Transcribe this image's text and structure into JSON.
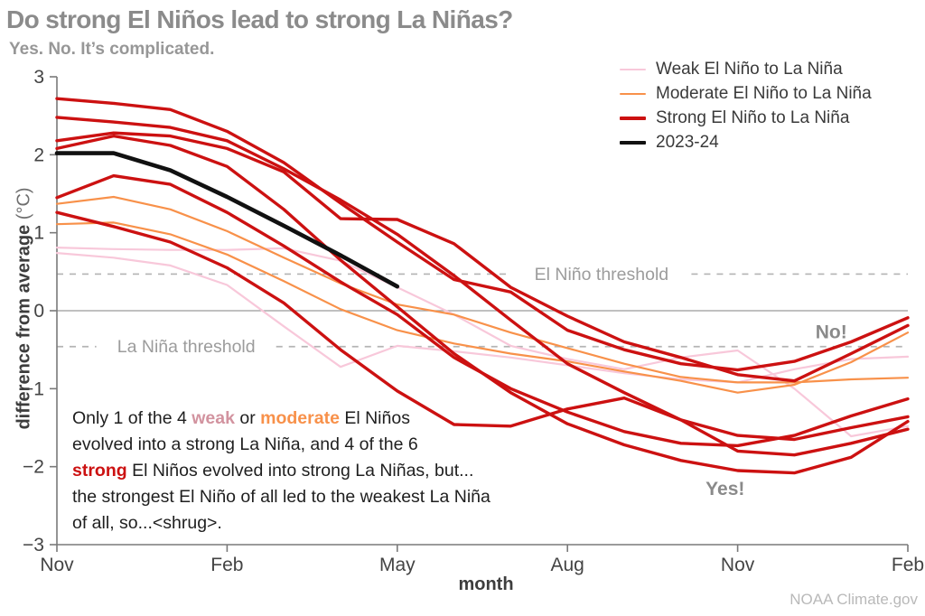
{
  "title": "Do strong El Niños lead to strong La Niñas?",
  "subtitle": "Yes. No. It’s complicated.",
  "credit": "NOAA Climate.gov",
  "colors": {
    "weak": "#f8c8da",
    "weak_text": "#d2939f",
    "moderate": "#f8914a",
    "strong": "#cc1111",
    "current": "#111111",
    "axis": "#7a7a7a",
    "zero_line": "#9a9a9a",
    "threshold_line": "#b4b4b4",
    "threshold_text": "#9c9c9c",
    "tick_text": "#444444",
    "gray_label": "#8a8a8a",
    "title_text": "#8b8b8b",
    "subtitle_text": "#979797",
    "body_text": "#1f1f1f",
    "credit_text": "#b9b9b9"
  },
  "legend": [
    {
      "label": "Weak El Niño to La Niña",
      "color_key": "weak",
      "thickness": 2.2
    },
    {
      "label": "Moderate El Niño to La Niña",
      "color_key": "moderate",
      "thickness": 2.2
    },
    {
      "label": "Strong El Niño to La Niña",
      "color_key": "strong",
      "thickness": 3.2
    },
    {
      "label": "2023-24",
      "color_key": "current",
      "thickness": 4.5
    }
  ],
  "axis_labels": {
    "y_main": "difference from average ",
    "y_units": "(°C)",
    "x": "month"
  },
  "annotation_lines": [
    [
      {
        "t": "Only 1 of the 4 "
      },
      {
        "t": "weak",
        "c": "weak_text",
        "b": true
      },
      {
        "t": " or "
      },
      {
        "t": "moderate",
        "c": "moderate",
        "b": true
      },
      {
        "t": " El Niños"
      }
    ],
    [
      {
        "t": "evolved into a strong La Niña, and 4 of the 6"
      }
    ],
    [
      {
        "t": "strong",
        "c": "strong",
        "b": true
      },
      {
        "t": " El Niños evolved into strong La Niñas, but..."
      }
    ],
    [
      {
        "t": "the strongest El Niño of all led to the weakest La Niña"
      }
    ],
    [
      {
        "t": "of all, so...<shrug>."
      }
    ]
  ],
  "chart_data": {
    "type": "line",
    "x": [
      "Nov",
      "Dec",
      "Jan",
      "Feb",
      "Mar",
      "Apr",
      "May",
      "Jun",
      "Jul",
      "Aug",
      "Sep",
      "Oct",
      "Nov",
      "Dec",
      "Jan",
      "Feb"
    ],
    "x_tick_indices": [
      0,
      3,
      6,
      9,
      12,
      15
    ],
    "x_tick_labels": [
      "Nov",
      "Feb",
      "May",
      "Aug",
      "Nov",
      "Feb"
    ],
    "xlabel": "month",
    "ylabel": "difference from average (°C)",
    "ylim": [
      -3,
      3
    ],
    "y_ticks": [
      3,
      2,
      1,
      0,
      -1,
      -2,
      -3
    ],
    "y_tick_labels": [
      "3",
      "2",
      "1",
      "0",
      "−1",
      "−2",
      "−3"
    ],
    "grid": "zero-line only",
    "legend_position": "top-right",
    "thresholds": [
      {
        "label": "El Niño threshold",
        "value": 0.47,
        "label_center_month": 9.6
      },
      {
        "label": "La Niña threshold",
        "value": -0.46,
        "label_center_month": 2.28
      }
    ],
    "point_labels": [
      {
        "text": "No!",
        "month": 13.65,
        "value": -0.27
      },
      {
        "text": "Yes!",
        "month": 11.78,
        "value": -2.28
      }
    ],
    "series": [
      {
        "name": "weak-el-nino-1",
        "group": "weak",
        "values": [
          0.74,
          0.68,
          0.58,
          0.33,
          -0.2,
          -0.72,
          -0.45,
          -0.52,
          -0.6,
          -0.7,
          -0.8,
          -0.88,
          -0.92,
          -0.75,
          -0.62,
          -0.59
        ]
      },
      {
        "name": "weak-el-nino-2",
        "group": "weak",
        "values": [
          0.81,
          0.79,
          0.78,
          0.78,
          0.8,
          0.64,
          0.3,
          -0.05,
          -0.45,
          -0.62,
          -0.75,
          -0.6,
          -0.51,
          -1.0,
          -1.61,
          -1.48
        ]
      },
      {
        "name": "moderate-el-nino-1",
        "group": "moderate",
        "values": [
          1.37,
          1.46,
          1.3,
          1.02,
          0.68,
          0.35,
          0.08,
          -0.05,
          -0.28,
          -0.48,
          -0.68,
          -0.85,
          -0.92,
          -0.92,
          -0.88,
          -0.86
        ]
      },
      {
        "name": "moderate-el-nino-2",
        "group": "moderate",
        "values": [
          1.11,
          1.13,
          0.98,
          0.72,
          0.38,
          0.02,
          -0.25,
          -0.42,
          -0.55,
          -0.65,
          -0.78,
          -0.9,
          -1.05,
          -0.95,
          -0.66,
          -0.28
        ]
      },
      {
        "name": "strong-el-nino-1",
        "group": "strong",
        "values": [
          2.72,
          2.66,
          2.58,
          2.3,
          1.9,
          1.38,
          0.88,
          0.4,
          0.24,
          -0.25,
          -0.5,
          -0.68,
          -0.76,
          -0.65,
          -0.4,
          -0.09
        ]
      },
      {
        "name": "strong-el-nino-2",
        "group": "strong",
        "values": [
          2.48,
          2.42,
          2.35,
          2.18,
          1.82,
          1.42,
          0.98,
          0.45,
          -0.12,
          -0.68,
          -1.05,
          -1.4,
          -1.6,
          -1.65,
          -1.5,
          -1.36
        ]
      },
      {
        "name": "strong-el-nino-3",
        "group": "strong",
        "values": [
          2.18,
          2.28,
          2.24,
          2.08,
          1.78,
          1.18,
          1.17,
          0.86,
          0.3,
          -0.07,
          -0.4,
          -0.6,
          -0.82,
          -0.9,
          -0.55,
          -0.19
        ]
      },
      {
        "name": "strong-el-nino-4",
        "group": "strong",
        "values": [
          2.08,
          2.24,
          2.12,
          1.85,
          1.3,
          0.65,
          0.05,
          -0.55,
          -1.05,
          -1.45,
          -1.72,
          -1.92,
          -2.05,
          -2.08,
          -1.88,
          -1.42
        ]
      },
      {
        "name": "strong-el-nino-5",
        "group": "strong",
        "values": [
          1.45,
          1.73,
          1.62,
          1.26,
          0.83,
          0.37,
          -0.05,
          -0.6,
          -1.0,
          -1.3,
          -1.55,
          -1.7,
          -1.73,
          -1.6,
          -1.35,
          -1.13
        ]
      },
      {
        "name": "strong-el-nino-6",
        "group": "strong",
        "values": [
          1.26,
          1.08,
          0.88,
          0.55,
          0.1,
          -0.5,
          -1.03,
          -1.46,
          -1.48,
          -1.26,
          -1.12,
          -1.4,
          -1.8,
          -1.85,
          -1.7,
          -1.52
        ]
      },
      {
        "name": "2023-24",
        "group": "current",
        "values": [
          2.02,
          2.02,
          1.8,
          1.46,
          1.09,
          0.71,
          0.31,
          null,
          null,
          null,
          null,
          null,
          null,
          null,
          null,
          null
        ]
      }
    ]
  }
}
